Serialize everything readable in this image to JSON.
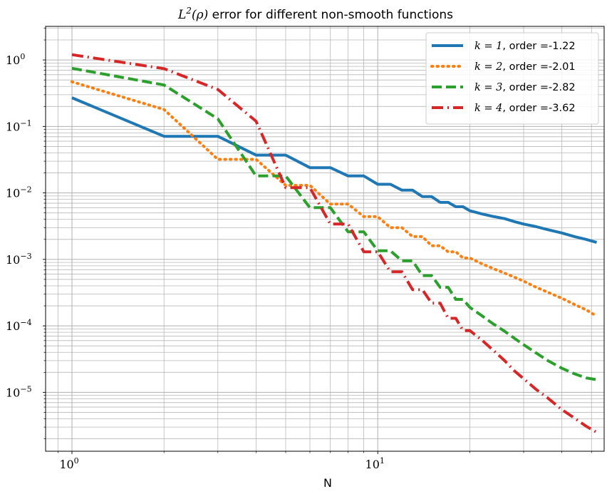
{
  "chart_data": {
    "type": "line",
    "title_prefix": "L",
    "title_sup": "2",
    "title_arg": "(ρ)",
    "title_rest": " error for different non-smooth functions",
    "xlabel": "N",
    "ylabel": "",
    "xscale": "log",
    "yscale": "log",
    "xlim": [
      0.82,
      55
    ],
    "ylim": [
      1.3e-06,
      3.2
    ],
    "grid": true,
    "legend_position": "top-right",
    "x_ticks": [
      {
        "value": 1,
        "base": "10",
        "exp": "0"
      },
      {
        "value": 10,
        "base": "10",
        "exp": "1"
      }
    ],
    "y_ticks": [
      {
        "value": 1,
        "base": "10",
        "exp": "0"
      },
      {
        "value": 0.1,
        "base": "10",
        "exp": "−1"
      },
      {
        "value": 0.01,
        "base": "10",
        "exp": "−2"
      },
      {
        "value": 0.001,
        "base": "10",
        "exp": "−3"
      },
      {
        "value": 0.0001,
        "base": "10",
        "exp": "−4"
      },
      {
        "value": 1e-05,
        "base": "10",
        "exp": "−5"
      }
    ],
    "series": [
      {
        "name_math": "k = 1",
        "name_rest": ", order =-1.22",
        "color": "#1f77b4",
        "style": "solid",
        "x": [
          1,
          2,
          3,
          4,
          5,
          6,
          7,
          8,
          9,
          10,
          11,
          12,
          13,
          14,
          15,
          16,
          17,
          18,
          19,
          20,
          22,
          24,
          26,
          28,
          30,
          33,
          36,
          40,
          44,
          48,
          52
        ],
        "y": [
          0.27,
          0.071,
          0.071,
          0.037,
          0.037,
          0.024,
          0.024,
          0.018,
          0.018,
          0.0135,
          0.0135,
          0.011,
          0.011,
          0.0088,
          0.0088,
          0.0072,
          0.0072,
          0.0062,
          0.0062,
          0.0054,
          0.0048,
          0.0044,
          0.0041,
          0.0037,
          0.0034,
          0.0031,
          0.0028,
          0.0025,
          0.0022,
          0.002,
          0.0018
        ]
      },
      {
        "name_math": "k = 2",
        "name_rest": ", order =-2.01",
        "color": "#ff7f0e",
        "style": "dotted",
        "x": [
          1,
          2,
          3,
          4,
          5,
          6,
          7,
          8,
          9,
          10,
          11,
          12,
          13,
          14,
          15,
          16,
          17,
          18,
          19,
          20,
          22,
          24,
          26,
          28,
          30,
          33,
          36,
          40,
          44,
          48,
          52
        ],
        "y": [
          0.47,
          0.18,
          0.032,
          0.032,
          0.013,
          0.013,
          0.0068,
          0.0068,
          0.0044,
          0.0044,
          0.003,
          0.003,
          0.0022,
          0.0022,
          0.0016,
          0.0016,
          0.0013,
          0.0013,
          0.00105,
          0.00105,
          0.00085,
          0.00072,
          0.00062,
          0.00054,
          0.00047,
          0.00038,
          0.00032,
          0.00026,
          0.00021,
          0.000175,
          0.00014
        ]
      },
      {
        "name_math": "k = 3",
        "name_rest": ", order =-2.82",
        "color": "#2ca02c",
        "style": "dashed",
        "x": [
          1,
          2,
          3,
          4,
          5,
          6,
          7,
          8,
          9,
          10,
          11,
          12,
          13,
          14,
          15,
          16,
          17,
          18,
          19,
          20,
          22,
          24,
          26,
          28,
          30,
          33,
          36,
          40,
          44,
          48,
          52
        ],
        "y": [
          0.75,
          0.42,
          0.13,
          0.018,
          0.018,
          0.006,
          0.006,
          0.0026,
          0.0026,
          0.00135,
          0.00135,
          0.00095,
          0.00095,
          0.00057,
          0.00057,
          0.00038,
          0.00038,
          0.00025,
          0.00025,
          0.00019,
          0.00014,
          0.000105,
          8.3e-05,
          6.5e-05,
          5.2e-05,
          3.9e-05,
          3e-05,
          2.3e-05,
          1.9e-05,
          1.65e-05,
          1.55e-05
        ]
      },
      {
        "name_math": "k = 4",
        "name_rest": ", order =-3.62",
        "color": "#d62728",
        "style": "dashdot",
        "x": [
          1,
          2,
          3,
          4,
          5,
          6,
          7,
          8,
          9,
          10,
          11,
          12,
          13,
          14,
          15,
          16,
          17,
          18,
          19,
          20,
          22,
          24,
          26,
          28,
          30,
          33,
          36,
          40,
          44,
          48,
          52
        ],
        "y": [
          1.2,
          0.74,
          0.36,
          0.12,
          0.012,
          0.012,
          0.0034,
          0.0034,
          0.0013,
          0.0013,
          0.00065,
          0.00065,
          0.00035,
          0.00035,
          0.00022,
          0.00022,
          0.00013,
          0.00013,
          8.5e-05,
          8.5e-05,
          6e-05,
          4.2e-05,
          3e-05,
          2.1e-05,
          1.6e-05,
          1.1e-05,
          8.2e-06,
          5.5e-06,
          4.1e-06,
          3.1e-06,
          2.5e-06
        ]
      }
    ]
  }
}
